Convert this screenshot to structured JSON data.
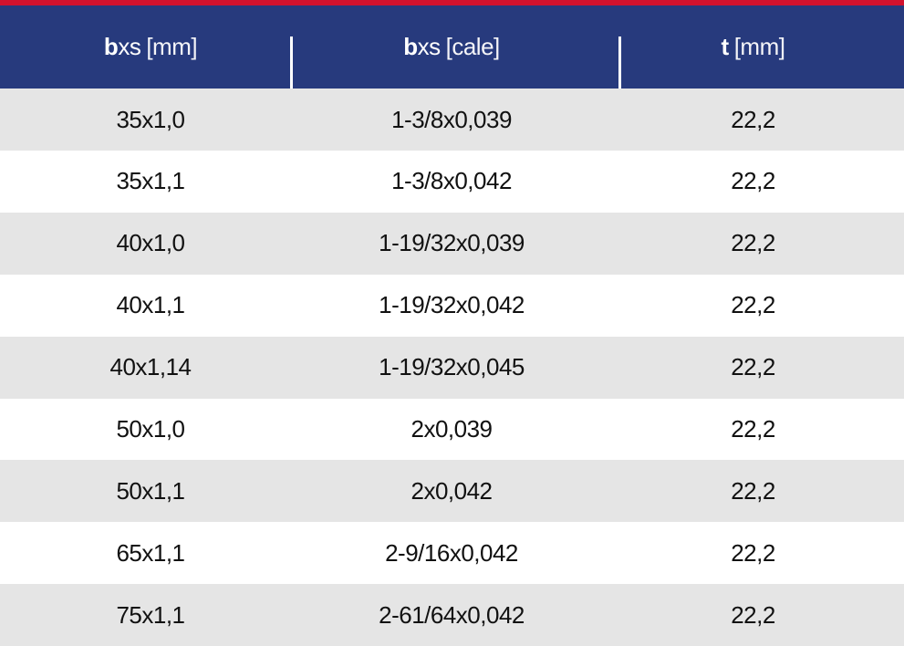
{
  "header": {
    "columns": [
      {
        "strong": "b",
        "plain": "xs",
        "unit": "[mm]"
      },
      {
        "strong": "b",
        "plain": "xs",
        "unit": "[cale]"
      },
      {
        "strong": "t",
        "unit": "[mm]"
      }
    ]
  },
  "table": {
    "rows": [
      [
        "35x1,0",
        "1-3/8x0,039",
        "22,2"
      ],
      [
        "35x1,1",
        "1-3/8x0,042",
        "22,2"
      ],
      [
        "40x1,0",
        "1-19/32x0,039",
        "22,2"
      ],
      [
        "40x1,1",
        "1-19/32x0,042",
        "22,2"
      ],
      [
        "40x1,14",
        "1-19/32x0,045",
        "22,2"
      ],
      [
        "50x1,0",
        "2x0,039",
        "22,2"
      ],
      [
        "50x1,1",
        "2x0,042",
        "22,2"
      ],
      [
        "65x1,1",
        "2-9/16x0,042",
        "22,2"
      ],
      [
        "75x1,1",
        "2-61/64x0,042",
        "22,2"
      ]
    ]
  }
}
